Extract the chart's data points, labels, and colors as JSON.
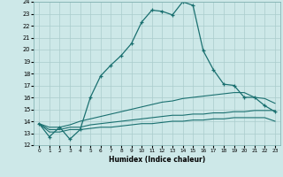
{
  "xlabel": "Humidex (Indice chaleur)",
  "xlim": [
    -0.5,
    23.5
  ],
  "ylim": [
    12,
    24
  ],
  "yticks": [
    12,
    13,
    14,
    15,
    16,
    17,
    18,
    19,
    20,
    21,
    22,
    23,
    24
  ],
  "xticks": [
    0,
    1,
    2,
    3,
    4,
    5,
    6,
    7,
    8,
    9,
    10,
    11,
    12,
    13,
    14,
    15,
    16,
    17,
    18,
    19,
    20,
    21,
    22,
    23
  ],
  "background_color": "#cde8e8",
  "grid_color": "#aacccc",
  "line_color": "#1a7070",
  "line1_x": [
    0,
    1,
    2,
    3,
    4,
    5,
    6,
    7,
    8,
    9,
    10,
    11,
    12,
    13,
    14,
    15,
    16,
    17,
    18,
    19,
    20,
    21,
    22,
    23
  ],
  "line1_y": [
    13.8,
    12.7,
    13.5,
    12.5,
    13.3,
    16.0,
    17.8,
    18.7,
    19.5,
    20.5,
    22.3,
    23.3,
    23.2,
    22.9,
    24.0,
    23.7,
    19.9,
    18.3,
    17.1,
    17.0,
    16.0,
    16.0,
    15.3,
    14.8
  ],
  "line2_x": [
    0,
    1,
    2,
    3,
    4,
    5,
    6,
    7,
    8,
    9,
    10,
    11,
    12,
    13,
    14,
    15,
    16,
    17,
    18,
    19,
    20,
    21,
    22,
    23
  ],
  "line2_y": [
    13.8,
    13.5,
    13.5,
    13.7,
    14.0,
    14.2,
    14.4,
    14.6,
    14.8,
    15.0,
    15.2,
    15.4,
    15.6,
    15.7,
    15.9,
    16.0,
    16.1,
    16.2,
    16.3,
    16.4,
    16.4,
    16.0,
    15.9,
    15.5
  ],
  "line3_x": [
    0,
    1,
    2,
    3,
    4,
    5,
    6,
    7,
    8,
    9,
    10,
    11,
    12,
    13,
    14,
    15,
    16,
    17,
    18,
    19,
    20,
    21,
    22,
    23
  ],
  "line3_y": [
    13.8,
    13.3,
    13.3,
    13.5,
    13.5,
    13.7,
    13.8,
    13.9,
    14.0,
    14.1,
    14.2,
    14.3,
    14.4,
    14.5,
    14.5,
    14.6,
    14.6,
    14.7,
    14.7,
    14.8,
    14.8,
    14.9,
    14.9,
    14.9
  ],
  "line4_x": [
    0,
    1,
    2,
    3,
    4,
    5,
    6,
    7,
    8,
    9,
    10,
    11,
    12,
    13,
    14,
    15,
    16,
    17,
    18,
    19,
    20,
    21,
    22,
    23
  ],
  "line4_y": [
    13.8,
    13.1,
    13.1,
    13.3,
    13.3,
    13.4,
    13.5,
    13.5,
    13.6,
    13.7,
    13.8,
    13.8,
    13.9,
    14.0,
    14.0,
    14.1,
    14.1,
    14.2,
    14.2,
    14.3,
    14.3,
    14.3,
    14.3,
    14.0
  ]
}
